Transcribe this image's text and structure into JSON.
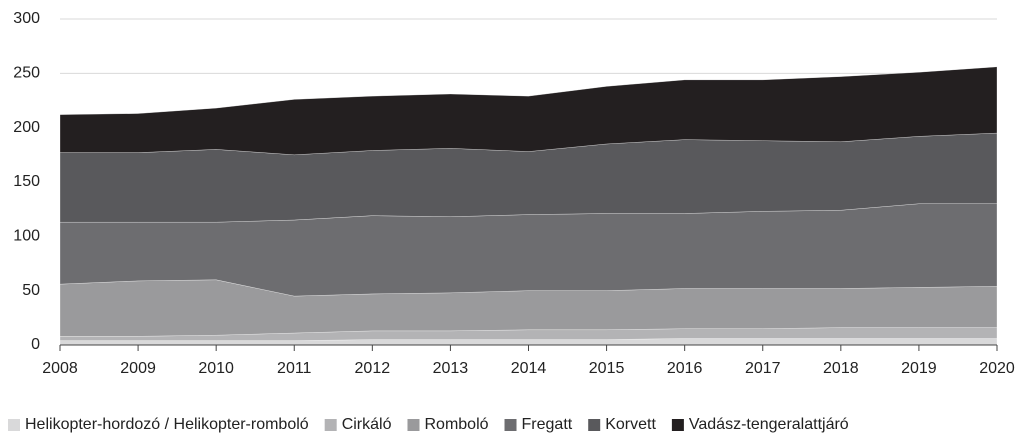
{
  "chart_data": {
    "type": "stacked-area",
    "x": [
      2008,
      2009,
      2010,
      2011,
      2012,
      2013,
      2014,
      2015,
      2016,
      2017,
      2018,
      2019,
      2020
    ],
    "xlim": [
      2008,
      2020
    ],
    "xticks": [
      2008,
      2009,
      2010,
      2011,
      2012,
      2013,
      2014,
      2015,
      2016,
      2017,
      2018,
      2019,
      2020
    ],
    "ylim": [
      0,
      300
    ],
    "yticks": [
      0,
      50,
      100,
      150,
      200,
      250,
      300
    ],
    "grid": true,
    "legend": "bottom",
    "series": [
      {
        "name": "Helikopter-hordozó / Helikopter-romboló",
        "color": "#d9d9da",
        "values": [
          4,
          4,
          4,
          4,
          5,
          5,
          5,
          5,
          6,
          6,
          6,
          6,
          6
        ]
      },
      {
        "name": "Cirkáló",
        "color": "#b3b3b5",
        "values": [
          4,
          4,
          5,
          7,
          8,
          8,
          9,
          9,
          9,
          9,
          10,
          10,
          10
        ]
      },
      {
        "name": "Romboló",
        "color": "#9a9a9c",
        "values": [
          48,
          51,
          51,
          34,
          34,
          35,
          36,
          36,
          37,
          37,
          36,
          37,
          38
        ]
      },
      {
        "name": "Fregatt",
        "color": "#6d6d70",
        "values": [
          57,
          54,
          53,
          70,
          72,
          70,
          70,
          71,
          69,
          71,
          72,
          77,
          76
        ]
      },
      {
        "name": "Korvett",
        "color": "#59595c",
        "values": [
          64,
          64,
          67,
          60,
          60,
          63,
          58,
          64,
          68,
          65,
          63,
          62,
          65
        ]
      },
      {
        "name": "Vadász-tengeralattjáró",
        "color": "#231f20",
        "values": [
          35,
          36,
          38,
          51,
          50,
          50,
          51,
          53,
          55,
          56,
          60,
          59,
          61
        ]
      }
    ]
  }
}
